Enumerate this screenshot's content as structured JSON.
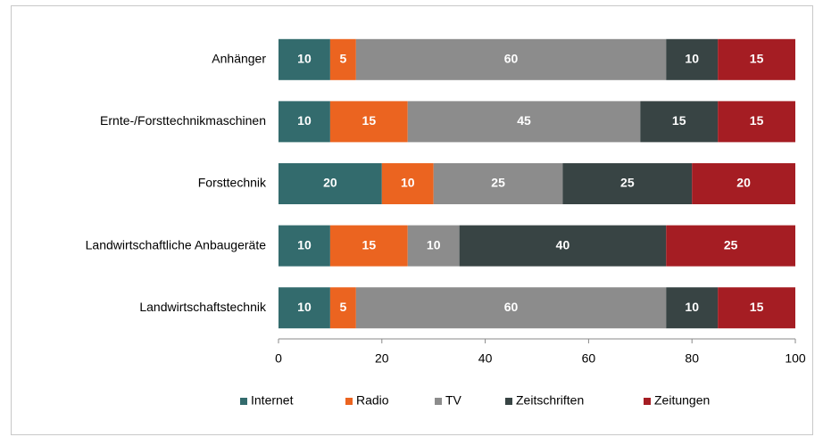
{
  "chart_data": {
    "type": "stacked-bar-horizontal",
    "categories": [
      "Anhänger",
      "Ernte-/Forsttechnikmaschinen",
      "Forsttechnik",
      "Landwirtschaftliche Anbaugeräte",
      "Landwirtschaftstechnik"
    ],
    "series": [
      {
        "name": "Internet",
        "color": "#336b6d",
        "values": [
          10,
          10,
          20,
          10,
          10
        ]
      },
      {
        "name": "Radio",
        "color": "#eb6420",
        "values": [
          5,
          15,
          10,
          15,
          5
        ]
      },
      {
        "name": "TV",
        "color": "#8c8c8c",
        "values": [
          60,
          45,
          25,
          10,
          60
        ]
      },
      {
        "name": "Zeitschriften",
        "color": "#384444",
        "values": [
          10,
          15,
          25,
          40,
          10
        ]
      },
      {
        "name": "Zeitungen",
        "color": "#a51d23",
        "values": [
          15,
          15,
          20,
          25,
          15
        ]
      }
    ],
    "xlim": [
      0,
      100
    ],
    "xticks": [
      0,
      20,
      40,
      60,
      80,
      100
    ],
    "grid": false,
    "legend": "bottom"
  }
}
